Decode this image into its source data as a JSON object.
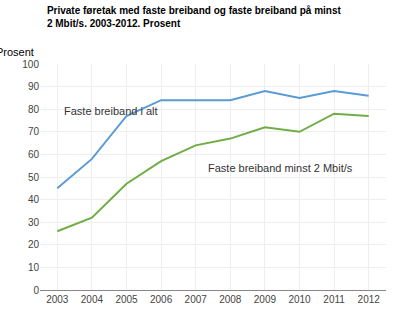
{
  "chart_data": {
    "type": "line",
    "title": "Private føretak med faste breiband og faste breiband på minst\n2 Mbit/s. 2003-2012. Prosent",
    "y_label": "Prosent",
    "x": [
      2003,
      2004,
      2005,
      2006,
      2007,
      2008,
      2009,
      2010,
      2011,
      2012
    ],
    "series": [
      {
        "color": "#5B9BD5",
        "values": [
          45,
          58,
          77,
          84,
          84,
          84,
          88,
          85,
          88,
          86
        ]
      },
      {
        "color": "#70AD47",
        "values": [
          26,
          32,
          47,
          57,
          64,
          67,
          72,
          70,
          78,
          77
        ]
      }
    ],
    "annotations": [
      {
        "text": "Faste breiband i alt",
        "x": 2003.15,
        "y": 79
      },
      {
        "text": "Faste breiband minst 2 Mbit/s",
        "x": 2007.3,
        "y": 54
      }
    ],
    "xlim": [
      2002.5,
      2012.5
    ],
    "xticks": [
      2003,
      2004,
      2005,
      2006,
      2007,
      2008,
      2009,
      2010,
      2011,
      2012
    ],
    "ylim": [
      0,
      100
    ],
    "yticks": [
      0,
      10,
      20,
      30,
      40,
      50,
      60,
      70,
      80,
      90,
      100
    ],
    "grid": true
  }
}
